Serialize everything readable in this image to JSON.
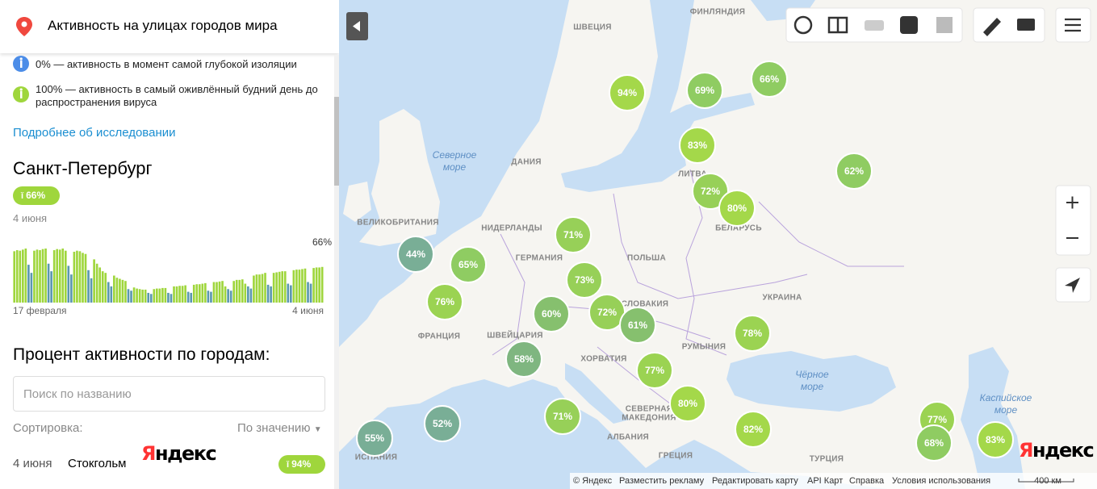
{
  "header": {
    "title": "Активность на улицах городов мира"
  },
  "legend": [
    {
      "text": "0% — активность в момент самой глубокой изоляции",
      "color": "#4c8de8"
    },
    {
      "text": "100% — активность в самый оживлённый будний день до распространения вируса",
      "color": "#9fd63c"
    }
  ],
  "more_link": "Подробнее об исследовании",
  "city": {
    "name": "Санкт-Петербург",
    "badge": "66%",
    "date": "4 июня",
    "chart": {
      "type": "bar",
      "ylim": [
        0,
        100
      ],
      "weekday_color": "#9fd63c",
      "weekend_color": "#5b97b0",
      "value_label": "66%",
      "x_labels": [
        "17 февраля",
        "4 июня"
      ],
      "values": [
        95,
        97,
        96,
        98,
        100,
        70,
        55,
        96,
        98,
        97,
        99,
        100,
        72,
        58,
        97,
        99,
        98,
        100,
        96,
        68,
        52,
        94,
        96,
        95,
        92,
        90,
        60,
        45,
        80,
        72,
        65,
        58,
        55,
        38,
        30,
        50,
        46,
        44,
        42,
        40,
        25,
        22,
        28,
        26,
        25,
        24,
        24,
        18,
        16,
        25,
        26,
        26,
        27,
        27,
        18,
        16,
        30,
        30,
        31,
        31,
        32,
        20,
        18,
        33,
        34,
        34,
        35,
        36,
        22,
        20,
        38,
        38,
        39,
        40,
        30,
        25,
        22,
        40,
        42,
        42,
        43,
        35,
        30,
        26,
        50,
        52,
        52,
        53,
        55,
        33,
        30,
        55,
        56,
        57,
        58,
        58,
        35,
        32,
        60,
        61,
        61,
        62,
        63,
        38,
        35,
        64,
        65,
        65,
        66
      ]
    }
  },
  "list": {
    "title": "Процент активности по городам:",
    "search_placeholder": "Поиск по названию",
    "sort_label": "Сортировка:",
    "sort_value": "По значению",
    "rows": [
      {
        "date": "4 июня",
        "city": "Стокгольм",
        "value": "94%"
      }
    ]
  },
  "logo": "Яндекс",
  "map": {
    "countries": [
      "ФИНЛЯНДИЯ",
      "ШВЕЦИЯ",
      "ДАНИЯ",
      "ЛИТВА",
      "ВЕЛИКОБРИТАНИЯ",
      "НИДЕРЛАНДЫ",
      "ГЕРМАНИЯ",
      "ПОЛЬША",
      "БЕЛАРУСЬ",
      "УКРАИНА",
      "ФРАНЦИЯ",
      "ШВЕЙЦАРИЯ",
      "СЛОВАКИЯ",
      "ХОРВАТИЯ",
      "РУМЫНИЯ",
      "АЛБАНИЯ",
      "ГРЕЦИЯ",
      "ТУРЦИЯ",
      "ИСПАНИЯ"
    ],
    "multiline": [
      [
        "СЕВЕРНАЯ",
        "МАКЕДОНИЯ"
      ]
    ],
    "seas": [
      [
        "Северное",
        "море"
      ],
      [
        "Чёрное",
        "море"
      ],
      [
        "Каспийское",
        "море"
      ]
    ],
    "bubbles": [
      {
        "label": "94%",
        "color": "#a4d84a"
      },
      {
        "label": "69%",
        "color": "#8fcc62"
      },
      {
        "label": "66%",
        "color": "#8fcc62"
      },
      {
        "label": "83%",
        "color": "#a4d84a"
      },
      {
        "label": "62%",
        "color": "#8fcc62"
      },
      {
        "label": "72%",
        "color": "#97d058"
      },
      {
        "label": "80%",
        "color": "#a4d84a"
      },
      {
        "label": "71%",
        "color": "#97d058"
      },
      {
        "label": "44%",
        "color": "#79ae96"
      },
      {
        "label": "65%",
        "color": "#8fcc62"
      },
      {
        "label": "73%",
        "color": "#97d058"
      },
      {
        "label": "76%",
        "color": "#9bd352"
      },
      {
        "label": "60%",
        "color": "#86c06e"
      },
      {
        "label": "72%",
        "color": "#97d058"
      },
      {
        "label": "61%",
        "color": "#86c06e"
      },
      {
        "label": "78%",
        "color": "#9bd352"
      },
      {
        "label": "58%",
        "color": "#7fb680"
      },
      {
        "label": "77%",
        "color": "#9bd352"
      },
      {
        "label": "80%",
        "color": "#a4d84a"
      },
      {
        "label": "71%",
        "color": "#97d058"
      },
      {
        "label": "52%",
        "color": "#79ae96"
      },
      {
        "label": "55%",
        "color": "#79ae96"
      },
      {
        "label": "82%",
        "color": "#a4d84a"
      },
      {
        "label": "77%",
        "color": "#9bd352"
      },
      {
        "label": "68%",
        "color": "#8fcc62"
      },
      {
        "label": "83%",
        "color": "#a4d84a"
      }
    ],
    "footer": [
      "© Яндекс",
      "Разместить рекламу",
      "Редактировать карту",
      "API Карт",
      "Справка",
      "Условия использования"
    ],
    "scale": "400 км",
    "logo": "Яндекс"
  }
}
